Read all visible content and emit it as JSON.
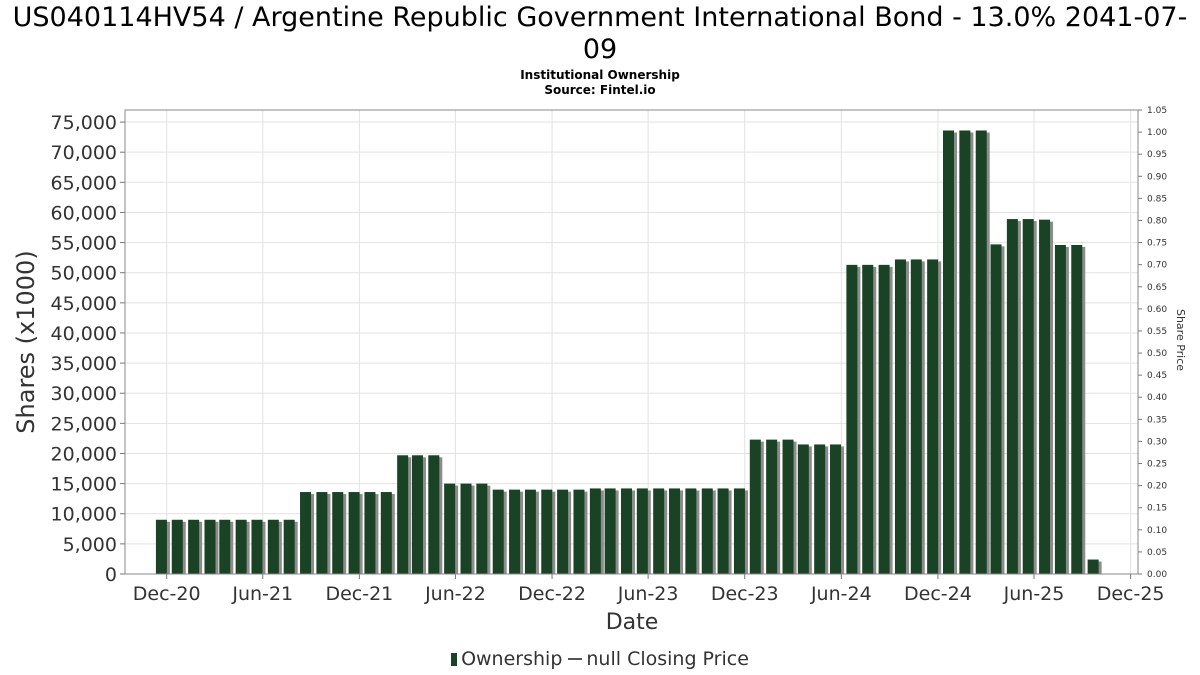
{
  "title": "US040114HV54 / Argentine Republic Government International Bond - 13.0% 2041-07-09",
  "subtitle_lines": [
    "Institutional Ownership",
    "Source: Fintel.io"
  ],
  "legend": {
    "ownership": "Ownership",
    "price": "null Closing Price"
  },
  "chart_data": {
    "type": "bar",
    "xlabel": "Date",
    "ylabel": "Shares (x1000)",
    "y2label": "Share Price",
    "ylim": [
      0,
      77000
    ],
    "y2lim": [
      0,
      1.05
    ],
    "xlim": [
      "2020-09-13",
      "2025-12-15"
    ],
    "grid": true,
    "legend_position": "bottom",
    "colors": {
      "bar": "#1a4224",
      "bar_shadow": "#8c8c8c",
      "grid": "#e2e2e2"
    },
    "y_ticks": [
      "0",
      "5,000",
      "10,000",
      "15,000",
      "20,000",
      "25,000",
      "30,000",
      "35,000",
      "40,000",
      "45,000",
      "50,000",
      "55,000",
      "60,000",
      "65,000",
      "70,000",
      "75,000"
    ],
    "y2_ticks": [
      "0.00",
      "0.05",
      "0.10",
      "0.15",
      "0.20",
      "0.25",
      "0.30",
      "0.35",
      "0.40",
      "0.45",
      "0.50",
      "0.55",
      "0.60",
      "0.65",
      "0.70",
      "0.75",
      "0.80",
      "0.85",
      "0.90",
      "0.95",
      "1.00",
      "1.05"
    ],
    "x_ticks": [
      {
        "label": "Dec-20",
        "date": "2020-12-01"
      },
      {
        "label": "Jun-21",
        "date": "2021-06-01"
      },
      {
        "label": "Dec-21",
        "date": "2021-12-01"
      },
      {
        "label": "Jun-22",
        "date": "2022-06-01"
      },
      {
        "label": "Dec-22",
        "date": "2022-12-01"
      },
      {
        "label": "Jun-23",
        "date": "2023-06-01"
      },
      {
        "label": "Dec-23",
        "date": "2023-12-01"
      },
      {
        "label": "Jun-24",
        "date": "2024-06-01"
      },
      {
        "label": "Dec-24",
        "date": "2024-12-01"
      },
      {
        "label": "Jun-25",
        "date": "2025-06-01"
      },
      {
        "label": "Dec-25",
        "date": "2025-12-01"
      }
    ],
    "series": [
      {
        "name": "Ownership",
        "dates": [
          "2020-11-21",
          "2020-12-21",
          "2021-01-21",
          "2021-02-21",
          "2021-03-21",
          "2021-04-21",
          "2021-05-21",
          "2021-06-21",
          "2021-07-21",
          "2021-08-21",
          "2021-09-21",
          "2021-10-21",
          "2021-11-21",
          "2021-12-21",
          "2022-01-21",
          "2022-02-21",
          "2022-03-21",
          "2022-04-21",
          "2022-05-21",
          "2022-06-21",
          "2022-07-21",
          "2022-08-21",
          "2022-09-21",
          "2022-10-21",
          "2022-11-21",
          "2022-12-21",
          "2023-01-21",
          "2023-02-21",
          "2023-03-21",
          "2023-04-21",
          "2023-05-21",
          "2023-06-21",
          "2023-07-21",
          "2023-08-21",
          "2023-09-21",
          "2023-10-21",
          "2023-11-21",
          "2023-12-21",
          "2024-01-21",
          "2024-02-21",
          "2024-03-21",
          "2024-04-21",
          "2024-05-21",
          "2024-06-21",
          "2024-07-21",
          "2024-08-21",
          "2024-09-21",
          "2024-10-21",
          "2024-11-21",
          "2024-12-21",
          "2025-01-21",
          "2025-02-21",
          "2025-03-21",
          "2025-04-21",
          "2025-05-21",
          "2025-06-21",
          "2025-07-21",
          "2025-08-21",
          "2025-09-21"
        ],
        "values": [
          9000,
          9000,
          9000,
          9000,
          9000,
          9000,
          9000,
          9000,
          9000,
          13600,
          13600,
          13600,
          13600,
          13600,
          13600,
          19700,
          19700,
          19700,
          15000,
          15000,
          15000,
          14000,
          14000,
          14000,
          14000,
          14000,
          14000,
          14200,
          14200,
          14200,
          14200,
          14200,
          14200,
          14200,
          14200,
          14200,
          14200,
          22300,
          22300,
          22300,
          21500,
          21500,
          21500,
          51300,
          51300,
          51300,
          52200,
          52200,
          52200,
          73600,
          73600,
          73600,
          54700,
          58900,
          58900,
          58800,
          54600,
          54600,
          2400
        ]
      }
    ]
  }
}
